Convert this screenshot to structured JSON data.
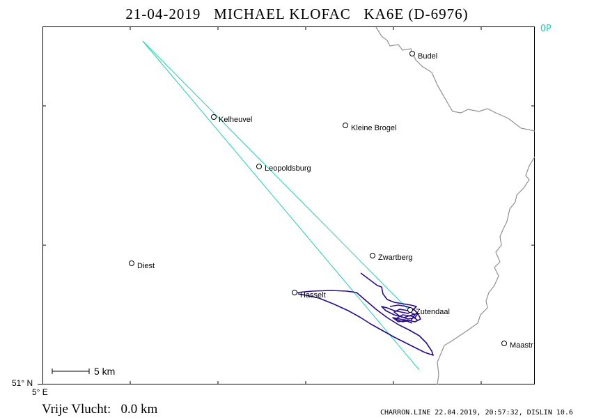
{
  "header": {
    "date": "21-04-2019",
    "pilot": "MICHAEL KLOFAC",
    "glider": "KA6E (D-6976)",
    "op_label": "OP"
  },
  "axes": {
    "lat_label": "51° N",
    "lon_label": "5° E"
  },
  "scale": {
    "label": "5 km"
  },
  "places": [
    {
      "name": "Budel"
    },
    {
      "name": "Kelheuvel"
    },
    {
      "name": "Kleine Brogel"
    },
    {
      "name": "Leopoldsburg"
    },
    {
      "name": "Diest"
    },
    {
      "name": "Zwartberg"
    },
    {
      "name": "Hasselt"
    },
    {
      "name": "Zutendaal"
    },
    {
      "name": "Maastr"
    }
  ],
  "footer": {
    "free_flight_label": "Vrije Vlucht:",
    "free_flight_value": "0.0 km",
    "software_info": "CHARRON.LINE 22.04.2019, 20:57:32, DISLIN 10.6"
  },
  "colors": {
    "task_line": "#20d0b0",
    "flight_track": "#2a0a8a",
    "border": "#909090",
    "op": "#20d0b0"
  }
}
